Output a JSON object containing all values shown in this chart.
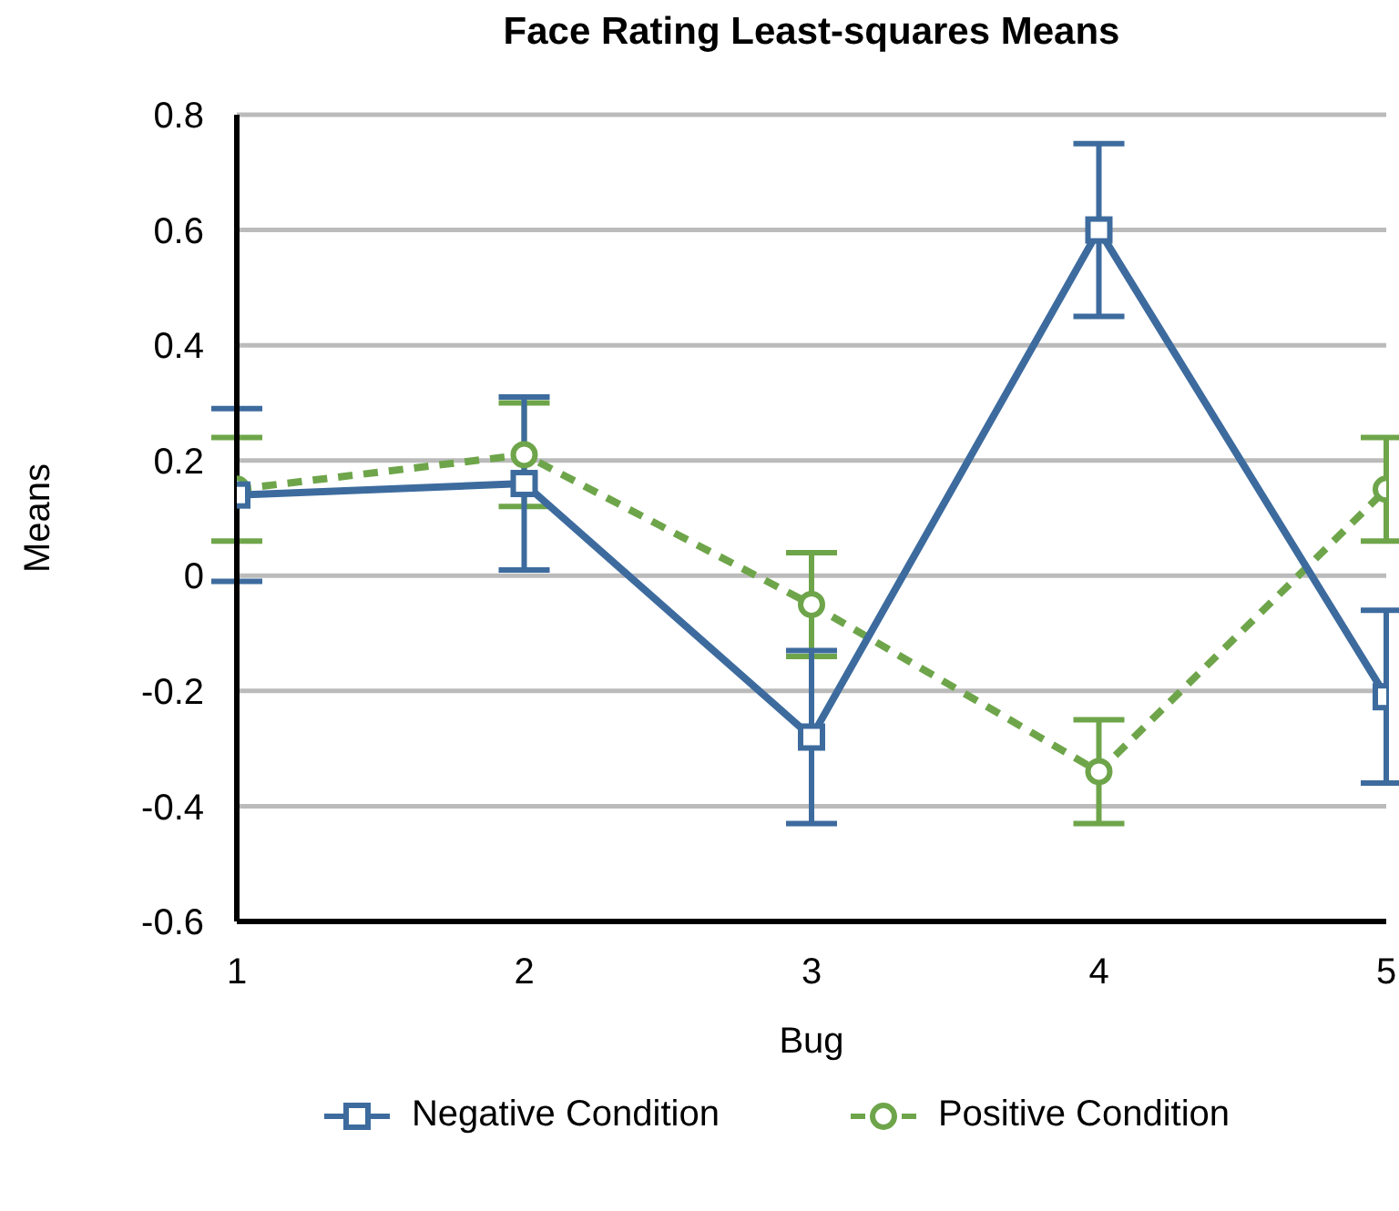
{
  "chart_data": {
    "type": "line",
    "title": "Face Rating Least-squares Means",
    "xlabel": "Bug",
    "ylabel": "Means",
    "x": [
      1,
      2,
      3,
      4,
      5
    ],
    "xlim": [
      1,
      5
    ],
    "xticks": [
      1,
      2,
      3,
      4,
      5
    ],
    "ylim": [
      -0.6,
      0.8
    ],
    "yticks": [
      -0.6,
      -0.4,
      -0.2,
      0,
      0.2,
      0.4,
      0.6,
      0.8
    ],
    "grid": "y",
    "legend": "bottom",
    "series": [
      {
        "name": "Negative Condition",
        "color": "#3d6b9e",
        "marker": "square",
        "line_style": "solid",
        "values": [
          0.14,
          0.16,
          -0.28,
          0.6,
          -0.21
        ],
        "errors": [
          0.15,
          0.15,
          0.15,
          0.15,
          0.15
        ]
      },
      {
        "name": "Positive Condition",
        "color": "#6ea54a",
        "marker": "circle",
        "line_style": "dashed",
        "values": [
          0.15,
          0.21,
          -0.05,
          -0.34,
          0.15
        ],
        "errors": [
          0.09,
          0.09,
          0.09,
          0.09,
          0.09
        ]
      }
    ]
  }
}
